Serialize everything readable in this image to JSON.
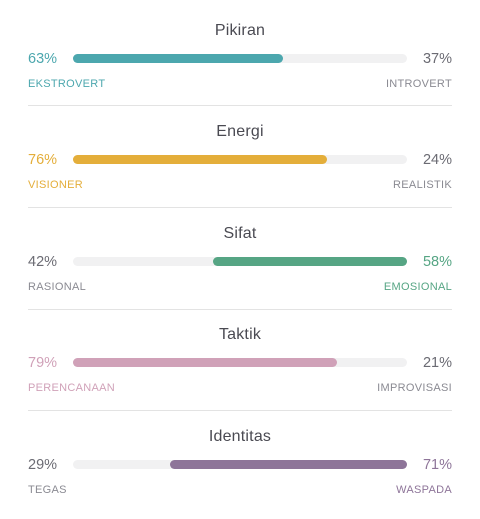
{
  "traits": [
    {
      "title": "Pikiran",
      "left_pct": "63%",
      "right_pct": "37%",
      "left_label": "EKSTROVERT",
      "right_label": "INTROVERT",
      "dominant": "left",
      "fill_fraction": 0.63,
      "color": "#4ca7ae"
    },
    {
      "title": "Energi",
      "left_pct": "76%",
      "right_pct": "24%",
      "left_label": "VISIONER",
      "right_label": "REALISTIK",
      "dominant": "left",
      "fill_fraction": 0.76,
      "color": "#e4ae3a"
    },
    {
      "title": "Sifat",
      "left_pct": "42%",
      "right_pct": "58%",
      "left_label": "RASIONAL",
      "right_label": "EMOSIONAL",
      "dominant": "right",
      "fill_fraction": 0.58,
      "color": "#56a584"
    },
    {
      "title": "Taktik",
      "left_pct": "79%",
      "right_pct": "21%",
      "left_label": "PERENCANAAN",
      "right_label": "IMPROVISASI",
      "dominant": "left",
      "fill_fraction": 0.79,
      "color": "#d0a1b8"
    },
    {
      "title": "Identitas",
      "left_pct": "29%",
      "right_pct": "71%",
      "left_label": "TEGAS",
      "right_label": "WASPADA",
      "dominant": "right",
      "fill_fraction": 0.71,
      "color": "#8e7599"
    }
  ]
}
